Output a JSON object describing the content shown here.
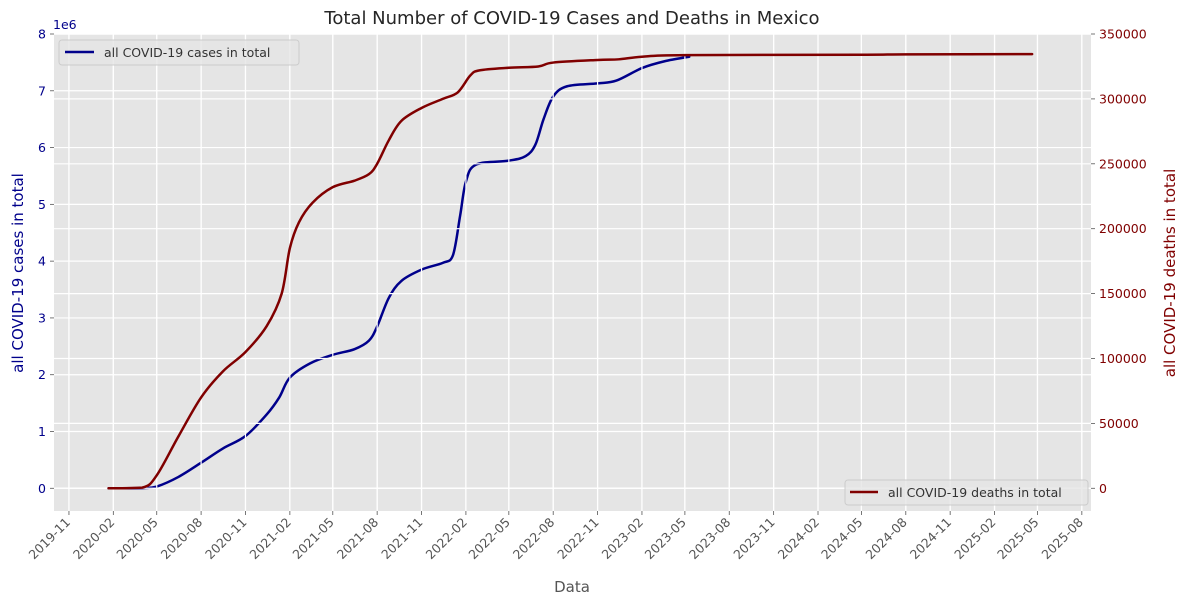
{
  "chart_data": {
    "type": "line",
    "title": "Total Number of COVID-19 Cases and Deaths in Mexico",
    "xlabel": "Data",
    "x_tick_labels": [
      "2019-11",
      "2020-02",
      "2020-05",
      "2020-08",
      "2020-11",
      "2021-02",
      "2021-05",
      "2021-08",
      "2021-11",
      "2022-02",
      "2022-05",
      "2022-08",
      "2022-11",
      "2023-02",
      "2023-05",
      "2023-08",
      "2023-11",
      "2024-02",
      "2024-05",
      "2024-08",
      "2024-11",
      "2025-02",
      "2025-05",
      "2025-08"
    ],
    "xlim": [
      "2019-10-01",
      "2025-08-20"
    ],
    "grid": true,
    "left_axis": {
      "label": "all COVID-19 cases in total",
      "color": "#00008b",
      "ylim": [
        -0.4,
        8
      ],
      "offset_text": "1e6",
      "ticks": [
        0,
        1,
        2,
        3,
        4,
        5,
        6,
        7,
        8
      ],
      "tick_labels": [
        "0",
        "1",
        "2",
        "3",
        "4",
        "5",
        "6",
        "7",
        "8"
      ]
    },
    "right_axis": {
      "label": "all COVID-19 deaths in total",
      "color": "#800000",
      "ylim": [
        -17500,
        350000
      ],
      "ticks": [
        0,
        50000,
        100000,
        150000,
        200000,
        250000,
        300000,
        350000
      ],
      "tick_labels": [
        "0",
        "50000",
        "100000",
        "150000",
        "200000",
        "250000",
        "300000",
        "350000"
      ]
    },
    "series": [
      {
        "name": "all COVID-19 cases in total",
        "axis": "left",
        "unit": "millions",
        "color": "#00008b",
        "legend_position": "upper-left",
        "x": [
          "2020-01-22",
          "2020-04-06",
          "2020-05-01",
          "2020-06-15",
          "2020-08-01",
          "2020-09-15",
          "2020-11-01",
          "2020-12-15",
          "2021-01-10",
          "2021-02-01",
          "2021-03-15",
          "2021-05-01",
          "2021-06-15",
          "2021-07-15",
          "2021-08-01",
          "2021-08-25",
          "2021-09-20",
          "2021-11-01",
          "2021-12-15",
          "2022-01-05",
          "2022-01-20",
          "2022-02-01",
          "2022-02-22",
          "2022-05-01",
          "2022-06-05",
          "2022-06-25",
          "2022-07-12",
          "2022-08-01",
          "2022-08-30",
          "2022-11-01",
          "2022-12-10",
          "2023-02-01",
          "2023-03-20",
          "2023-05-10"
        ],
        "values": [
          0,
          0.005,
          0.03,
          0.2,
          0.45,
          0.7,
          0.92,
          1.3,
          1.6,
          1.95,
          2.2,
          2.35,
          2.45,
          2.6,
          2.85,
          3.35,
          3.65,
          3.85,
          3.97,
          4.1,
          4.8,
          5.4,
          5.7,
          5.77,
          5.85,
          6.05,
          6.5,
          6.9,
          7.08,
          7.13,
          7.18,
          7.4,
          7.52,
          7.6
        ]
      },
      {
        "name": "all COVID-19 deaths in total",
        "axis": "right",
        "unit": "count",
        "color": "#800000",
        "legend_position": "lower-right",
        "x": [
          "2020-01-22",
          "2020-04-01",
          "2020-05-01",
          "2020-06-15",
          "2020-08-01",
          "2020-09-15",
          "2020-11-01",
          "2020-12-15",
          "2021-01-15",
          "2021-02-01",
          "2021-02-20",
          "2021-03-20",
          "2021-05-01",
          "2021-06-15",
          "2021-07-15",
          "2021-08-01",
          "2021-08-25",
          "2021-09-20",
          "2021-11-01",
          "2021-12-15",
          "2022-01-15",
          "2022-02-10",
          "2022-03-01",
          "2022-05-01",
          "2022-07-01",
          "2022-08-01",
          "2022-11-01",
          "2022-12-15",
          "2023-02-01",
          "2023-05-01",
          "2024-05-01",
          "2024-08-01",
          "2025-04-20"
        ],
        "values": [
          0,
          500,
          10000,
          40000,
          70000,
          90000,
          105000,
          125000,
          150000,
          185000,
          205000,
          220000,
          232000,
          237000,
          242000,
          250000,
          268000,
          283000,
          293000,
          300000,
          305000,
          318000,
          322000,
          324000,
          325000,
          328000,
          330000,
          330500,
          332500,
          333700,
          334000,
          334300,
          334500
        ]
      }
    ]
  }
}
